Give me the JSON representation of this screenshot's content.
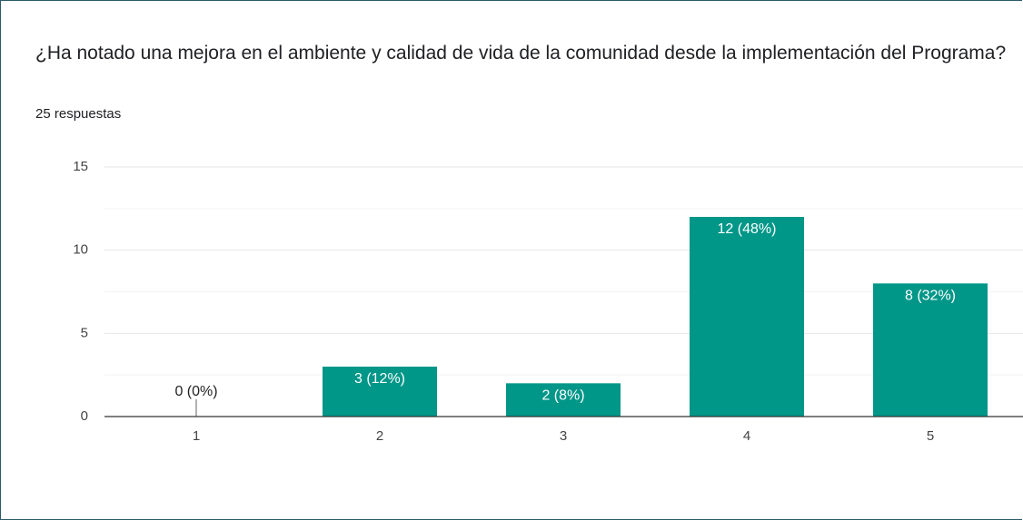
{
  "chart_data": {
    "type": "bar",
    "title": "¿Ha notado una mejora en el ambiente y calidad de vida de la comunidad desde la implementación del Programa?",
    "subtitle": "25 respuestas",
    "categories": [
      "1",
      "2",
      "3",
      "4",
      "5"
    ],
    "values": [
      0,
      3,
      2,
      12,
      8
    ],
    "value_labels": [
      "0 (0%)",
      "3 (12%)",
      "2 (8%)",
      "12 (48%)",
      "8 (32%)"
    ],
    "color": "#009688",
    "ylim": [
      0,
      15
    ],
    "yticks": [
      0,
      5,
      10,
      15
    ],
    "minor_yticks": [
      2.5,
      7.5,
      12.5
    ],
    "grid": true
  }
}
